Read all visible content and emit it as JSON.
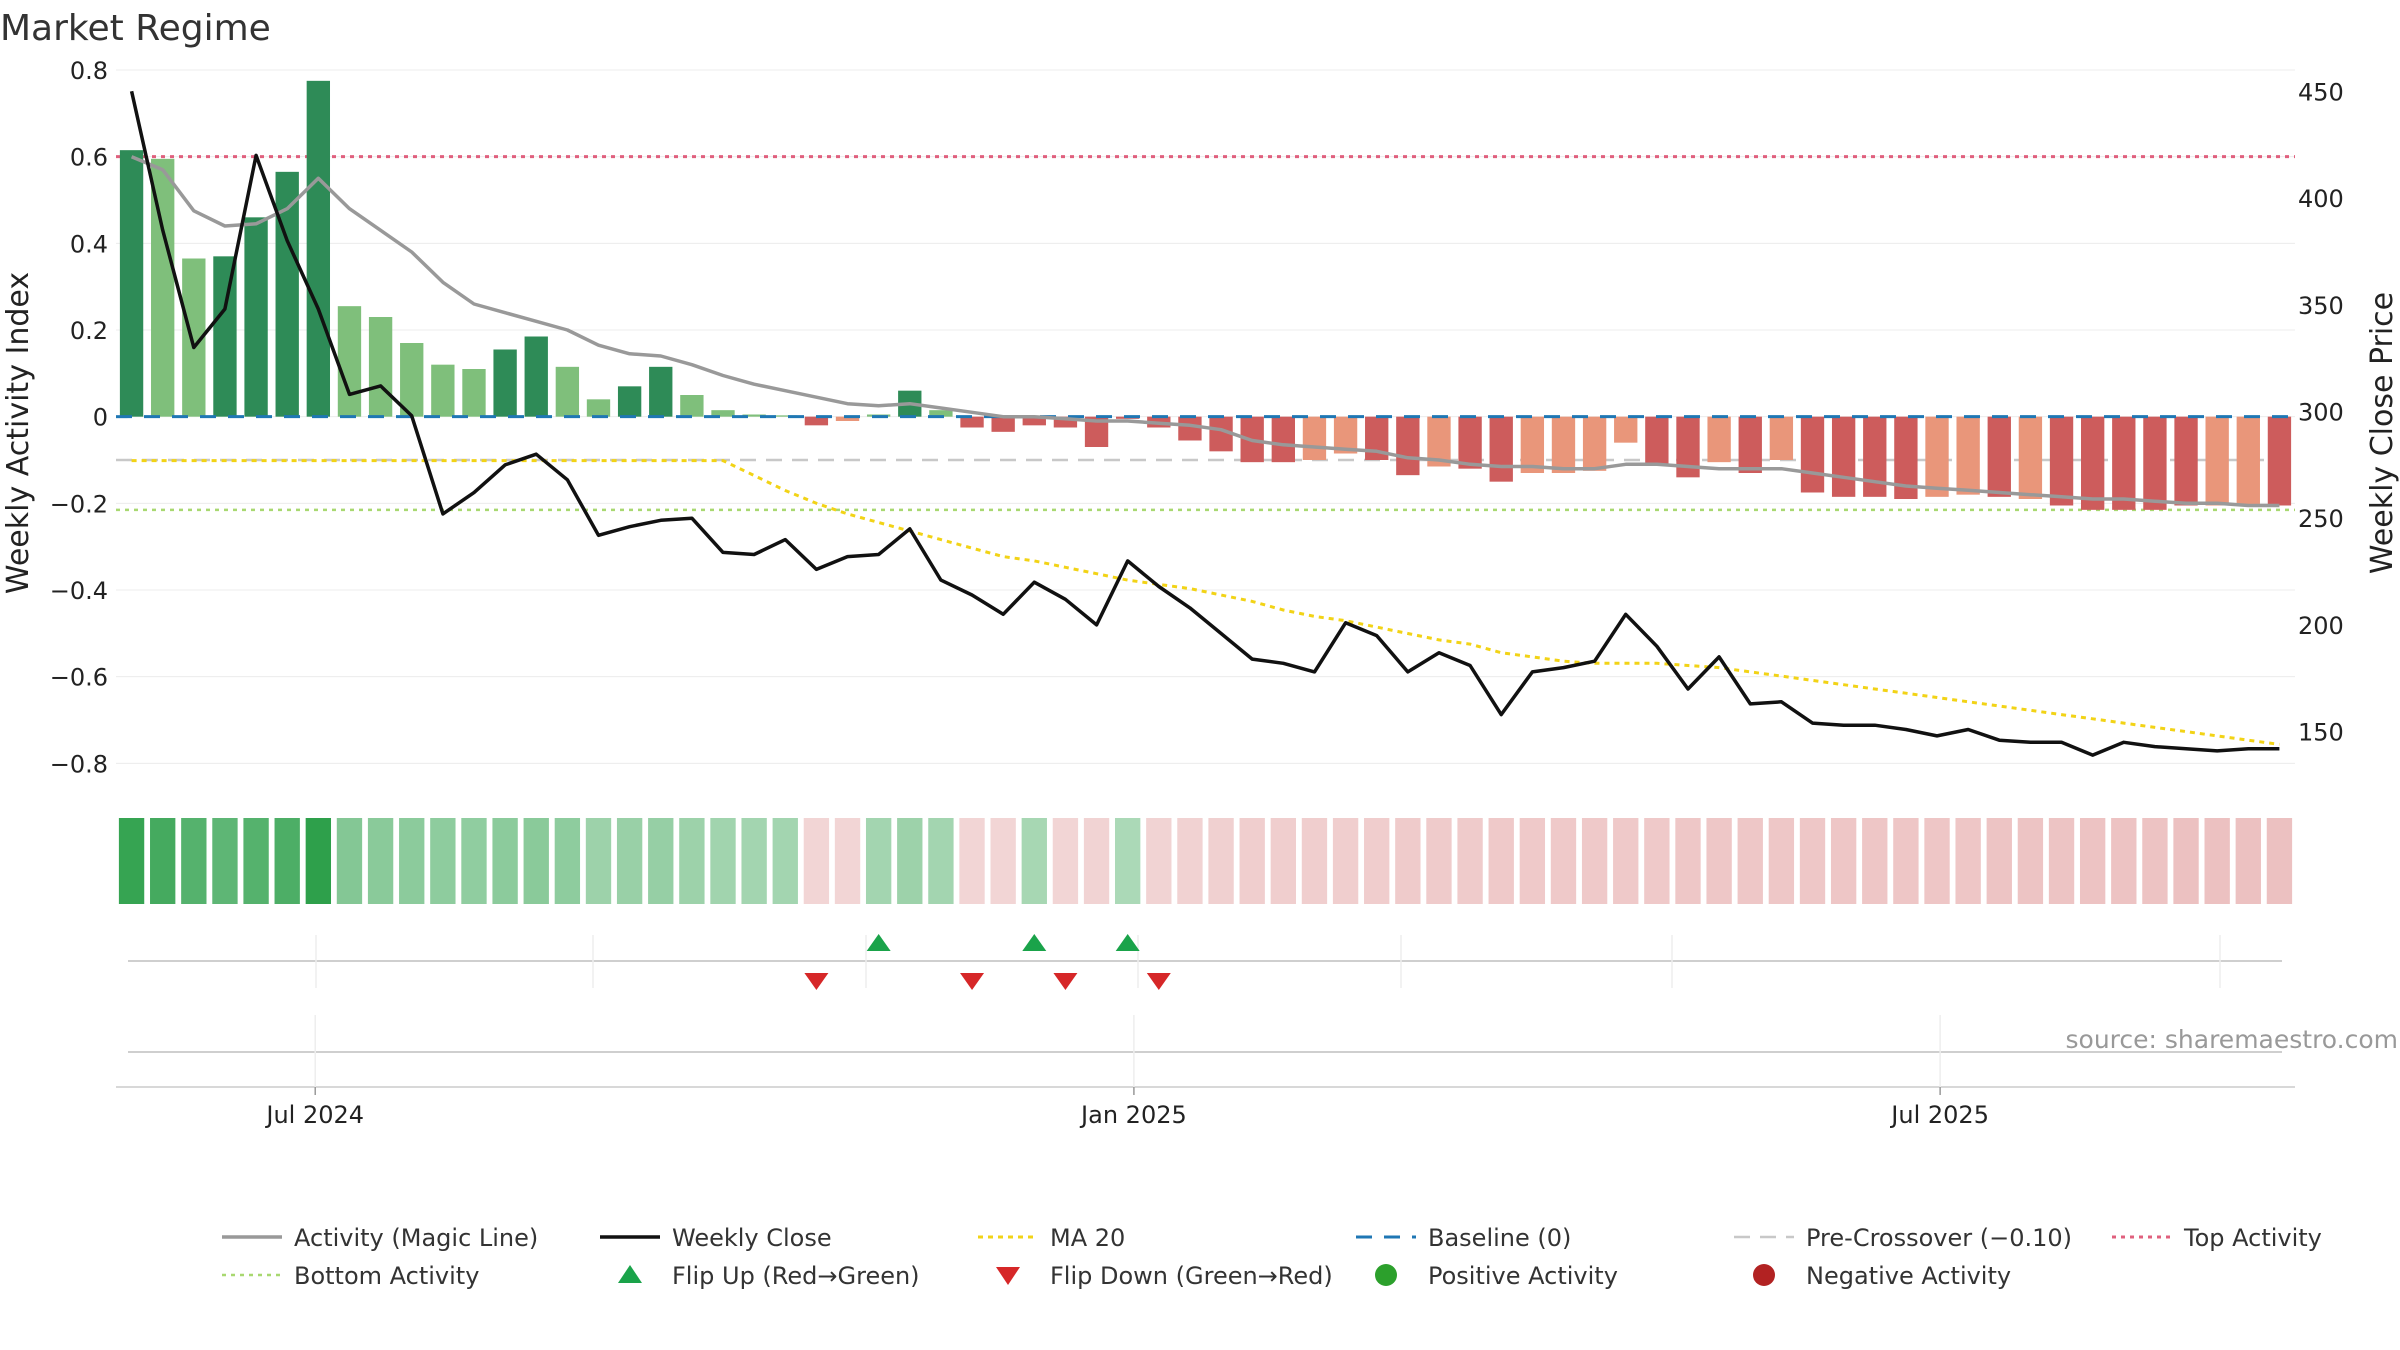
{
  "chart_data": {
    "type": "bar",
    "title": "Market Regime",
    "source": "source: sharemaestro.com",
    "ylabel_left": "Weekly Activity Index",
    "ylabel_right": "Weekly Close Price",
    "ylim_left": [
      -0.85,
      0.8
    ],
    "ylim_right": [
      125,
      460
    ],
    "yticks_left": [
      0.8,
      0.6,
      0.4,
      0.2,
      0,
      -0.2,
      -0.4,
      -0.6,
      -0.8
    ],
    "ytick_labels_left": [
      "0.8",
      "0.6",
      "0.4",
      "0.2",
      "0",
      "−0.2",
      "−0.4",
      "−0.6",
      "−0.8"
    ],
    "yticks_right": [
      450,
      400,
      350,
      300,
      250,
      200,
      150
    ],
    "xtick_labels": [
      "Jul 2024",
      "Jan 2025",
      "Jul 2025"
    ],
    "xtick_index": [
      6.4,
      32.7,
      58.6
    ],
    "grid": true,
    "legend_position": "bottom",
    "reference_lines": {
      "baseline": 0,
      "pre_crossover": -0.1,
      "top_activity": 0.6,
      "bottom_activity": -0.215
    },
    "colors": {
      "pos_strong": "#2e8b57",
      "pos_light": "#7fbf7b",
      "neg_strong": "#cd5c5c",
      "neg_light": "#e9967a",
      "close": "#111111",
      "magic": "#999999",
      "ma20": "#f2d316",
      "baseline": "#1f77b4",
      "pre_crossover": "#c8c8c8",
      "top": "#e0607e",
      "bottom": "#a8d870",
      "flip_up": "#1aa34a",
      "flip_down": "#d62728",
      "positive_dot": "#2ca02c",
      "negative_dot": "#b22222"
    },
    "bar_values": [
      0.615,
      0.595,
      0.365,
      0.37,
      0.46,
      0.565,
      0.775,
      0.255,
      0.23,
      0.17,
      0.12,
      0.11,
      0.155,
      0.185,
      0.115,
      0.04,
      0.07,
      0.115,
      0.05,
      0.015,
      0.005,
      0.003,
      -0.02,
      -0.01,
      0.005,
      0.06,
      0.015,
      -0.025,
      -0.035,
      -0.02,
      -0.025,
      -0.07,
      -0.005,
      -0.025,
      -0.055,
      -0.08,
      -0.105,
      -0.105,
      -0.1,
      -0.085,
      -0.1,
      -0.135,
      -0.115,
      -0.12,
      -0.15,
      -0.13,
      -0.13,
      -0.125,
      -0.06,
      -0.11,
      -0.14,
      -0.105,
      -0.13,
      -0.1,
      -0.175,
      -0.185,
      -0.185,
      -0.19,
      -0.185,
      -0.18,
      -0.185,
      -0.19,
      -0.205,
      -0.215,
      -0.215,
      -0.215,
      -0.205,
      -0.205,
      -0.205,
      -0.205
    ],
    "bar_strong": [
      1,
      0,
      0,
      1,
      1,
      1,
      1,
      0,
      0,
      0,
      0,
      0,
      1,
      1,
      0,
      0,
      1,
      1,
      0,
      0,
      0,
      0,
      1,
      0,
      0,
      1,
      0,
      1,
      1,
      1,
      1,
      1,
      1,
      1,
      1,
      1,
      1,
      1,
      0,
      0,
      1,
      1,
      0,
      1,
      1,
      0,
      0,
      0,
      0,
      1,
      1,
      0,
      1,
      0,
      1,
      1,
      1,
      1,
      0,
      0,
      1,
      0,
      1,
      1,
      1,
      1,
      1,
      0,
      0,
      1
    ],
    "magic_line": [
      0.6,
      0.57,
      0.475,
      0.44,
      0.445,
      0.48,
      0.55,
      0.48,
      0.43,
      0.38,
      0.31,
      0.26,
      0.24,
      0.22,
      0.2,
      0.165,
      0.145,
      0.14,
      0.12,
      0.095,
      0.075,
      0.06,
      0.045,
      0.03,
      0.025,
      0.03,
      0.02,
      0.01,
      0.0,
      0.0,
      -0.005,
      -0.01,
      -0.01,
      -0.015,
      -0.02,
      -0.03,
      -0.055,
      -0.065,
      -0.07,
      -0.075,
      -0.08,
      -0.095,
      -0.1,
      -0.11,
      -0.115,
      -0.115,
      -0.12,
      -0.12,
      -0.11,
      -0.11,
      -0.115,
      -0.12,
      -0.12,
      -0.12,
      -0.13,
      -0.14,
      -0.15,
      -0.16,
      -0.165,
      -0.17,
      -0.175,
      -0.18,
      -0.185,
      -0.19,
      -0.19,
      -0.195,
      -0.2,
      -0.2,
      -0.205,
      -0.205
    ],
    "weekly_close": [
      450,
      385,
      330,
      348,
      420,
      380,
      348,
      308,
      312,
      298,
      252,
      262,
      275,
      280,
      268,
      242,
      246,
      249,
      250,
      234,
      233,
      240,
      226,
      232,
      233,
      245,
      221,
      214,
      205,
      220,
      212,
      200,
      230,
      218,
      208,
      196,
      184,
      182,
      178,
      201,
      195,
      178,
      187,
      181,
      158,
      178,
      180,
      183,
      205,
      190,
      170,
      185,
      163,
      164,
      154,
      153,
      153,
      151,
      148,
      151,
      146,
      145,
      145,
      139,
      145,
      143,
      142,
      141,
      142,
      142
    ],
    "ma20": [
      277,
      277,
      277,
      277,
      277,
      277,
      277,
      277,
      277,
      277,
      277,
      277,
      277,
      277,
      277,
      277,
      277,
      277,
      277,
      277,
      270,
      263,
      257,
      252,
      248,
      244,
      240,
      236,
      232,
      230,
      227,
      224,
      221,
      219,
      217,
      214,
      211,
      207,
      204,
      202,
      199,
      196,
      193,
      191,
      187,
      185,
      183,
      182,
      182,
      182,
      181,
      180,
      178,
      176,
      174,
      172,
      170,
      168,
      166,
      164,
      162,
      160,
      158,
      156,
      154,
      152,
      150,
      148,
      146,
      144
    ],
    "regime_strip": [
      0.95,
      0.85,
      0.75,
      0.7,
      0.75,
      0.8,
      1.0,
      0.45,
      0.42,
      0.4,
      0.38,
      0.37,
      0.4,
      0.42,
      0.38,
      0.3,
      0.32,
      0.33,
      0.3,
      0.27,
      0.25,
      0.25,
      -0.2,
      -0.2,
      0.25,
      0.3,
      0.25,
      -0.2,
      -0.2,
      0.22,
      -0.2,
      -0.22,
      0.2,
      -0.22,
      -0.24,
      -0.26,
      -0.28,
      -0.28,
      -0.28,
      -0.28,
      -0.29,
      -0.3,
      -0.3,
      -0.31,
      -0.32,
      -0.32,
      -0.32,
      -0.33,
      -0.32,
      -0.33,
      -0.34,
      -0.34,
      -0.34,
      -0.34,
      -0.35,
      -0.36,
      -0.36,
      -0.37,
      -0.37,
      -0.37,
      -0.38,
      -0.38,
      -0.39,
      -0.4,
      -0.4,
      -0.4,
      -0.41,
      -0.41,
      -0.41,
      -0.42
    ],
    "flip_up_index": [
      24,
      29,
      32
    ],
    "flip_down_index": [
      22,
      27,
      30,
      33
    ],
    "legend": [
      {
        "key": "magic",
        "label": "Activity (Magic Line)"
      },
      {
        "key": "close",
        "label": "Weekly Close"
      },
      {
        "key": "ma20",
        "label": "MA 20"
      },
      {
        "key": "baseline",
        "label": "Baseline (0)"
      },
      {
        "key": "pre",
        "label": "Pre-Crossover (−0.10)"
      },
      {
        "key": "top",
        "label": "Top Activity"
      },
      {
        "key": "bottom",
        "label": "Bottom Activity"
      },
      {
        "key": "flipup",
        "label": "Flip Up (Red→Green)"
      },
      {
        "key": "flipdown",
        "label": "Flip Down (Green→Red)"
      },
      {
        "key": "posdot",
        "label": "Positive Activity"
      },
      {
        "key": "negdot",
        "label": "Negative Activity"
      }
    ]
  }
}
